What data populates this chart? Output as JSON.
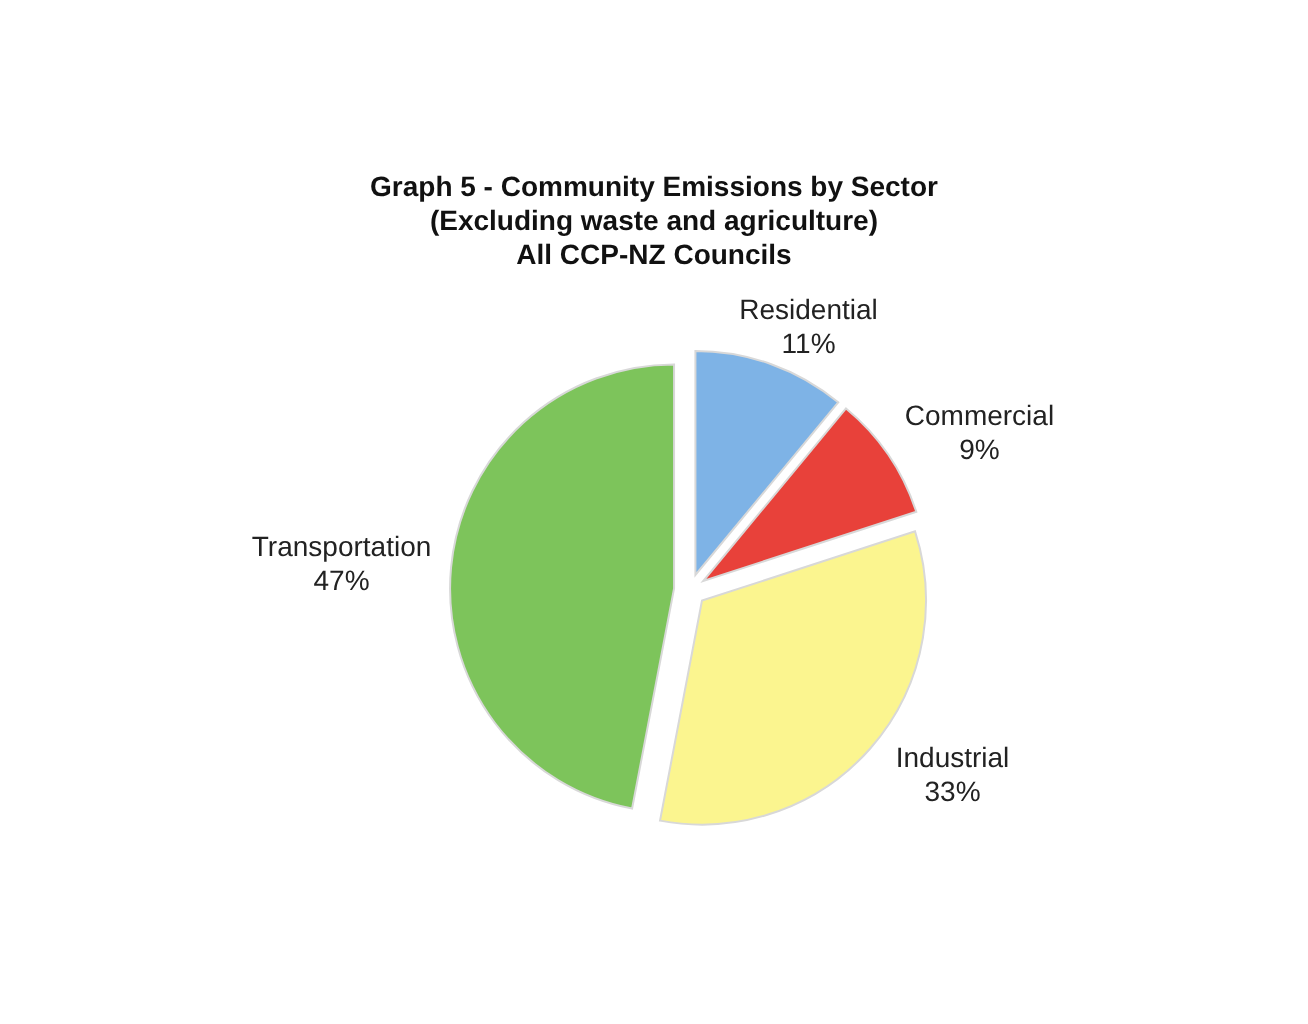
{
  "chart_data": {
    "type": "pie",
    "title": "Graph 5 - Community Emissions by Sector\n(Excluding waste and agriculture)\nAll CCP-NZ Councils",
    "categories": [
      "Residential",
      "Commercial",
      "Industrial",
      "Transportation"
    ],
    "values": [
      11,
      9,
      33,
      47
    ],
    "colors": [
      "#7eb3e6",
      "#e8413a",
      "#fbf58f",
      "#7dc45b"
    ],
    "value_labels": [
      "11%",
      "9%",
      "33%",
      "47%"
    ]
  }
}
